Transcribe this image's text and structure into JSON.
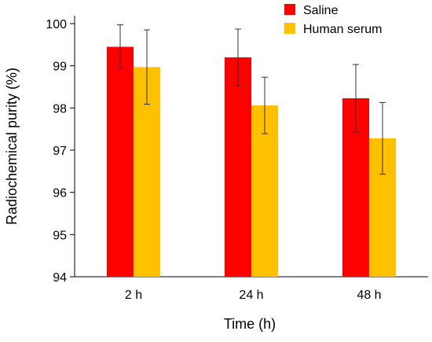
{
  "chart_data": {
    "type": "bar",
    "title": "",
    "xlabel": "Time (h)",
    "ylabel": "Radiochemical purity (%)",
    "categories": [
      "2 h",
      "24 h",
      "48 h"
    ],
    "ylim": [
      94,
      100
    ],
    "yticks": [
      94,
      95,
      96,
      97,
      98,
      99,
      100
    ],
    "grid": false,
    "legend_position": "top-right",
    "error_bars": true,
    "series": [
      {
        "name": "Saline",
        "color": "#ff0000",
        "values": [
          99.45,
          99.2,
          98.23
        ],
        "errors": [
          0.52,
          0.67,
          0.8
        ]
      },
      {
        "name": "Human serum",
        "color": "#ffc000",
        "values": [
          98.97,
          98.06,
          97.28
        ],
        "errors": [
          0.88,
          0.67,
          0.85
        ]
      }
    ]
  }
}
